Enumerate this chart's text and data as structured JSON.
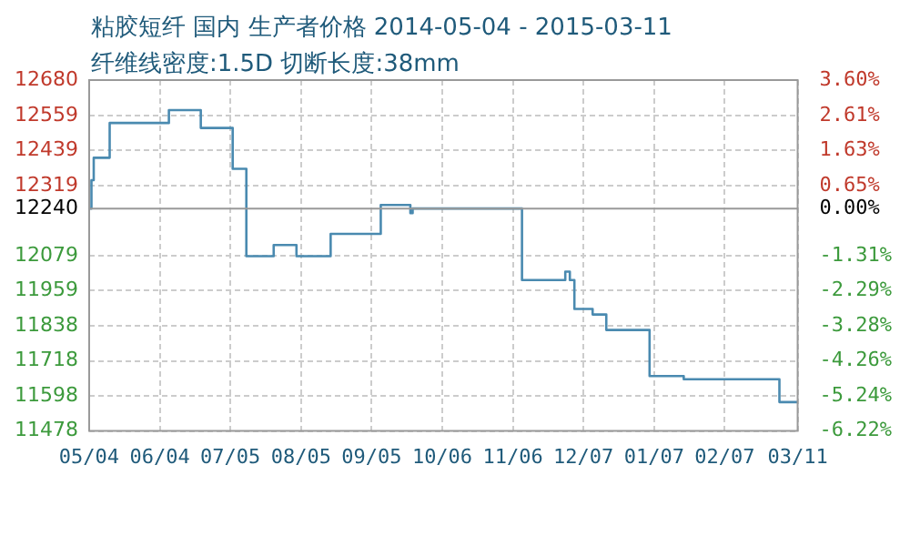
{
  "chart_data": {
    "type": "step",
    "title": "粘胶短纤 国内 生产者价格 2014-05-04 - 2015-03-11",
    "subtitle": "纤维线密度:1.5D 切断长度:38mm",
    "x": [
      "2014-05-04",
      "2014-05-05",
      "2014-05-06",
      "2014-05-13",
      "2014-06-08",
      "2014-06-22",
      "2014-07-06",
      "2014-07-12",
      "2014-07-24",
      "2014-08-03",
      "2014-08-18",
      "2014-09-09",
      "2014-09-22",
      "2014-09-23",
      "2014-11-10",
      "2014-11-29",
      "2014-12-01",
      "2014-12-03",
      "2014-12-11",
      "2014-12-17",
      "2015-01-05",
      "2015-01-20",
      "2015-03-03",
      "2015-03-11"
    ],
    "series": [
      {
        "color": "#4a8ab0",
        "values": [
          12240,
          12337,
          12414,
          12533,
          12577,
          12516,
          12376,
          12077,
          12115,
          12077,
          12153,
          12252,
          12224,
          12240,
          11995,
          12024,
          11995,
          11896,
          11877,
          11824,
          11666,
          11655,
          11577,
          11577
        ]
      }
    ],
    "xlim": [
      "2014-05-04",
      "2015-03-11"
    ],
    "xticks": [
      {
        "value": "2014-05-04",
        "label": "05/04"
      },
      {
        "value": "2014-06-04",
        "label": "06/04"
      },
      {
        "value": "2014-07-05",
        "label": "07/05"
      },
      {
        "value": "2014-08-05",
        "label": "08/05"
      },
      {
        "value": "2014-09-05",
        "label": "09/05"
      },
      {
        "value": "2014-10-06",
        "label": "10/06"
      },
      {
        "value": "2014-11-06",
        "label": "11/06"
      },
      {
        "value": "2014-12-07",
        "label": "12/07"
      },
      {
        "value": "2015-01-07",
        "label": "01/07"
      },
      {
        "value": "2015-02-07",
        "label": "02/07"
      },
      {
        "value": "2015-03-11",
        "label": "03/11"
      }
    ],
    "ylim": [
      11478,
      12680
    ],
    "yticks": [
      11478,
      11598,
      11718,
      11838,
      11959,
      12079,
      12240,
      12319,
      12439,
      12559,
      12680
    ],
    "y2lim": [
      -6.22,
      3.6
    ],
    "y2ticks": [
      {
        "value": -6.22,
        "label": "-6.22%"
      },
      {
        "value": -5.24,
        "label": "-5.24%"
      },
      {
        "value": -4.26,
        "label": "-4.26%"
      },
      {
        "value": -3.28,
        "label": "-3.28%"
      },
      {
        "value": -2.29,
        "label": "-2.29%"
      },
      {
        "value": -1.31,
        "label": "-1.31%"
      },
      {
        "value": 0,
        "label": "0.00%"
      },
      {
        "value": 0.65,
        "label": "0.65%"
      },
      {
        "value": 1.63,
        "label": "1.63%"
      },
      {
        "value": 2.61,
        "label": "2.61%"
      },
      {
        "value": 3.6,
        "label": "3.60%"
      }
    ],
    "ref_lines": [
      {
        "axis": "y",
        "value": 12240,
        "color": "#999999"
      }
    ],
    "grid": true,
    "legend": false,
    "marker": "none",
    "line_style": "solid"
  }
}
